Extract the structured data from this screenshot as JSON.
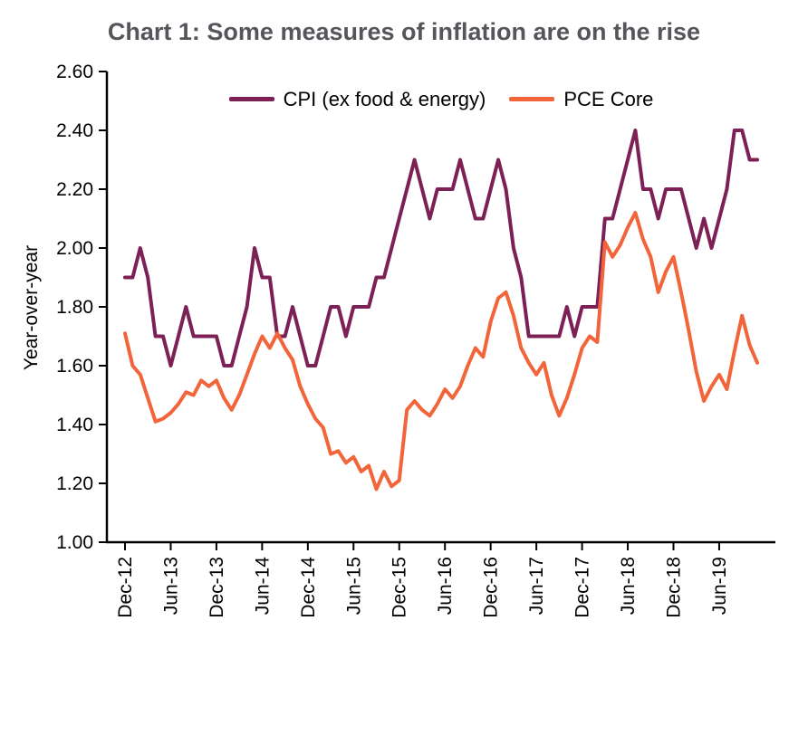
{
  "title": "Chart 1: Some measures of inflation are on the rise",
  "chart_data": {
    "type": "line",
    "title": "Chart 1: Some measures of inflation are on the rise",
    "xlabel": "",
    "ylabel": "Year-over-year",
    "ylim": [
      1.0,
      2.6
    ],
    "grid": false,
    "legend_position": "top-inside",
    "y_ticks": [
      "1.00",
      "1.20",
      "1.40",
      "1.60",
      "1.80",
      "2.00",
      "2.20",
      "2.40",
      "2.60"
    ],
    "x_tick_interval": 6,
    "x_tick_labels": [
      "Dec-12",
      "Jun-13",
      "Dec-13",
      "Jun-14",
      "Dec-14",
      "Jun-15",
      "Dec-15",
      "Jun-16",
      "Dec-16",
      "Jun-17",
      "Dec-17",
      "Jun-18",
      "Dec-18",
      "Jun-19"
    ],
    "x": [
      "Dec-12",
      "Jan-13",
      "Feb-13",
      "Mar-13",
      "Apr-13",
      "May-13",
      "Jun-13",
      "Jul-13",
      "Aug-13",
      "Sep-13",
      "Oct-13",
      "Nov-13",
      "Dec-13",
      "Jan-14",
      "Feb-14",
      "Mar-14",
      "Apr-14",
      "May-14",
      "Jun-14",
      "Jul-14",
      "Aug-14",
      "Sep-14",
      "Oct-14",
      "Nov-14",
      "Dec-14",
      "Jan-15",
      "Feb-15",
      "Mar-15",
      "Apr-15",
      "May-15",
      "Jun-15",
      "Jul-15",
      "Aug-15",
      "Sep-15",
      "Oct-15",
      "Nov-15",
      "Dec-15",
      "Jan-16",
      "Feb-16",
      "Mar-16",
      "Apr-16",
      "May-16",
      "Jun-16",
      "Jul-16",
      "Aug-16",
      "Sep-16",
      "Oct-16",
      "Nov-16",
      "Dec-16",
      "Jan-17",
      "Feb-17",
      "Mar-17",
      "Apr-17",
      "May-17",
      "Jun-17",
      "Jul-17",
      "Aug-17",
      "Sep-17",
      "Oct-17",
      "Nov-17",
      "Dec-17",
      "Jan-18",
      "Feb-18",
      "Mar-18",
      "Apr-18",
      "May-18",
      "Jun-18",
      "Jul-18",
      "Aug-18",
      "Sep-18",
      "Oct-18",
      "Nov-18",
      "Dec-18",
      "Jan-19",
      "Feb-19",
      "Mar-19",
      "Apr-19",
      "May-19",
      "Jun-19",
      "Jul-19",
      "Aug-19",
      "Sep-19",
      "Oct-19",
      "Nov-19"
    ],
    "series": [
      {
        "name": "CPI (ex food & energy)",
        "color": "#7C2055",
        "values": [
          1.9,
          1.9,
          2.0,
          1.9,
          1.7,
          1.7,
          1.6,
          1.7,
          1.8,
          1.7,
          1.7,
          1.7,
          1.7,
          1.6,
          1.6,
          1.7,
          1.8,
          2.0,
          1.9,
          1.9,
          1.7,
          1.7,
          1.8,
          1.7,
          1.6,
          1.6,
          1.7,
          1.8,
          1.8,
          1.7,
          1.8,
          1.8,
          1.8,
          1.9,
          1.9,
          2.0,
          2.1,
          2.2,
          2.3,
          2.2,
          2.1,
          2.2,
          2.2,
          2.2,
          2.3,
          2.2,
          2.1,
          2.1,
          2.2,
          2.3,
          2.2,
          2.0,
          1.9,
          1.7,
          1.7,
          1.7,
          1.7,
          1.7,
          1.8,
          1.7,
          1.8,
          1.8,
          1.8,
          2.1,
          2.1,
          2.2,
          2.3,
          2.4,
          2.2,
          2.2,
          2.1,
          2.2,
          2.2,
          2.2,
          2.1,
          2.0,
          2.1,
          2.0,
          2.1,
          2.2,
          2.4,
          2.4,
          2.3,
          2.3
        ]
      },
      {
        "name": "PCE Core",
        "color": "#F2653A",
        "values": [
          1.71,
          1.6,
          1.57,
          1.49,
          1.41,
          1.42,
          1.44,
          1.47,
          1.51,
          1.5,
          1.55,
          1.53,
          1.55,
          1.49,
          1.45,
          1.5,
          1.57,
          1.64,
          1.7,
          1.66,
          1.71,
          1.66,
          1.62,
          1.53,
          1.47,
          1.42,
          1.39,
          1.3,
          1.31,
          1.27,
          1.29,
          1.24,
          1.26,
          1.18,
          1.24,
          1.19,
          1.21,
          1.45,
          1.48,
          1.45,
          1.43,
          1.47,
          1.52,
          1.49,
          1.53,
          1.6,
          1.66,
          1.63,
          1.75,
          1.83,
          1.85,
          1.77,
          1.66,
          1.61,
          1.57,
          1.61,
          1.5,
          1.43,
          1.49,
          1.57,
          1.66,
          1.7,
          1.68,
          2.02,
          1.97,
          2.01,
          2.07,
          2.12,
          2.03,
          1.97,
          1.85,
          1.92,
          1.97,
          1.85,
          1.72,
          1.58,
          1.48,
          1.53,
          1.57,
          1.52,
          1.65,
          1.77,
          1.67,
          1.61
        ]
      }
    ]
  },
  "colors": {
    "title_text": "#54565B",
    "axis": "#000000",
    "background": "#FFFFFF"
  }
}
